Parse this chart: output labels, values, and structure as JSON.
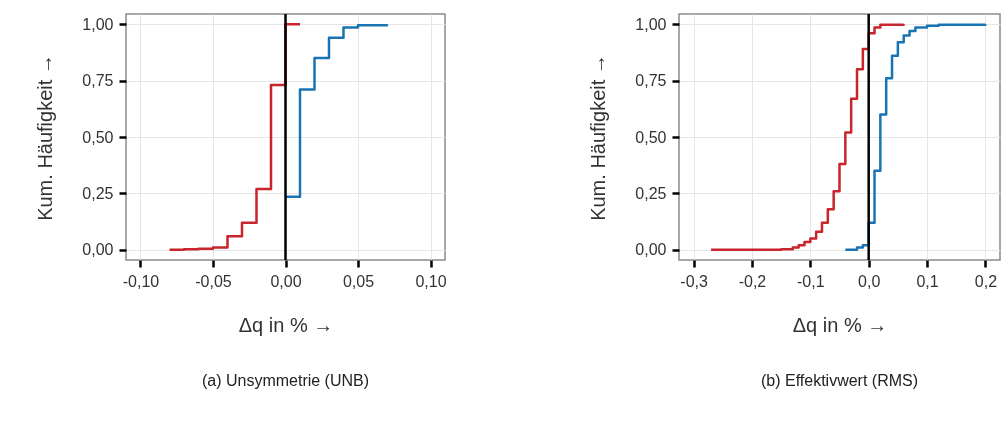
{
  "chart_data": [
    {
      "type": "step",
      "title": "(a) Unsymmetrie (UNB)",
      "xlabel": "Δq in % →",
      "ylabel": "Kum. Häufigkeit →",
      "grid": true,
      "xlim": [
        -0.11,
        0.11
      ],
      "ylim": [
        -0.045,
        1.045
      ],
      "xticks": [
        {
          "value": -0.1,
          "label": "-0,10"
        },
        {
          "value": -0.05,
          "label": "-0,05"
        },
        {
          "value": 0,
          "label": "0,00"
        },
        {
          "value": 0.05,
          "label": "0,05"
        },
        {
          "value": 0.1,
          "label": "0,10"
        }
      ],
      "yticks": [
        {
          "value": 0,
          "label": "0,00"
        },
        {
          "value": 0.25,
          "label": "0,25"
        },
        {
          "value": 0.5,
          "label": "0,50"
        },
        {
          "value": 0.75,
          "label": "0,75"
        },
        {
          "value": 1,
          "label": "1,00"
        }
      ],
      "ref_lines": [
        {
          "axis": "x",
          "value": 0,
          "color": "#000000"
        }
      ],
      "series": [
        {
          "color": "#c8252c",
          "x": [
            -0.08,
            -0.07,
            -0.06,
            -0.05,
            -0.04,
            -0.03,
            -0.02,
            -0.01,
            0,
            0.01
          ],
          "values": [
            0,
            0.003,
            0.005,
            0.01,
            0.06,
            0.12,
            0.27,
            0.73,
            1,
            1
          ]
        },
        {
          "color": "#1a74b3",
          "x": [
            0,
            0.01,
            0.02,
            0.03,
            0.04,
            0.05,
            0.07
          ],
          "values": [
            0.235,
            0.71,
            0.85,
            0.94,
            0.985,
            0.995,
            1
          ]
        }
      ]
    },
    {
      "type": "step",
      "title": "(b) Effektivwert (RMS)",
      "xlabel": "Δq in % →",
      "ylabel": "Kum. Häufigkeit →",
      "grid": true,
      "xlim": [
        -0.325,
        0.225
      ],
      "ylim": [
        -0.045,
        1.045
      ],
      "xticks": [
        {
          "value": -0.3,
          "label": "-0,3"
        },
        {
          "value": -0.2,
          "label": "-0,2"
        },
        {
          "value": -0.1,
          "label": "-0,1"
        },
        {
          "value": 0,
          "label": "0,0"
        },
        {
          "value": 0.1,
          "label": "0,1"
        },
        {
          "value": 0.2,
          "label": "0,2"
        }
      ],
      "yticks": [
        {
          "value": 0,
          "label": "0,00"
        },
        {
          "value": 0.25,
          "label": "0,25"
        },
        {
          "value": 0.5,
          "label": "0,50"
        },
        {
          "value": 0.75,
          "label": "0,75"
        },
        {
          "value": 1,
          "label": "1,00"
        }
      ],
      "ref_lines": [
        {
          "axis": "x",
          "value": 0,
          "color": "#000000"
        }
      ],
      "series": [
        {
          "color": "#c8252c",
          "x": [
            -0.27,
            -0.15,
            -0.13,
            -0.12,
            -0.11,
            -0.1,
            -0.09,
            -0.08,
            -0.07,
            -0.06,
            -0.05,
            -0.04,
            -0.03,
            -0.02,
            -0.01,
            0,
            0.01,
            0.02,
            0.06
          ],
          "values": [
            0,
            0.003,
            0.01,
            0.02,
            0.035,
            0.05,
            0.08,
            0.12,
            0.18,
            0.26,
            0.38,
            0.52,
            0.67,
            0.8,
            0.89,
            0.96,
            0.985,
            0.997,
            1
          ]
        },
        {
          "color": "#1a74b3",
          "x": [
            -0.04,
            -0.02,
            -0.01,
            0,
            0.01,
            0.02,
            0.03,
            0.04,
            0.05,
            0.06,
            0.07,
            0.08,
            0.1,
            0.12,
            0.2
          ],
          "values": [
            0,
            0.01,
            0.02,
            0.12,
            0.35,
            0.6,
            0.76,
            0.86,
            0.92,
            0.95,
            0.97,
            0.985,
            0.993,
            0.997,
            1
          ]
        }
      ]
    }
  ]
}
